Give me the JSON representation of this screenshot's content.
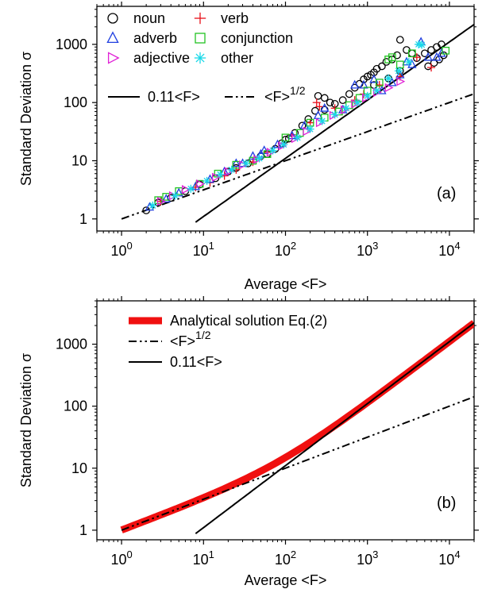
{
  "chart_data": [
    {
      "panel": "(a)",
      "type": "scatter",
      "xlabel": "Average <F>",
      "ylabel": "Standard Deviation σ",
      "xscale": "log",
      "yscale": "log",
      "xlim": [
        0.5,
        20000
      ],
      "ylim": [
        0.62,
        4500
      ],
      "xticks": [
        {
          "v": 1,
          "base": "10",
          "exp": "0"
        },
        {
          "v": 10,
          "base": "10",
          "exp": "1"
        },
        {
          "v": 100,
          "base": "10",
          "exp": "2"
        },
        {
          "v": 1000,
          "base": "10",
          "exp": "3"
        },
        {
          "v": 10000,
          "base": "10",
          "exp": "4"
        }
      ],
      "yticks": [
        {
          "v": 1,
          "label": "1"
        },
        {
          "v": 10,
          "label": "10"
        },
        {
          "v": 100,
          "label": "100"
        },
        {
          "v": 1000,
          "label": "1000"
        }
      ],
      "legend_position": "top-left",
      "legend": [
        {
          "name": "noun",
          "marker": "circle",
          "color": "#000000"
        },
        {
          "name": "verb",
          "marker": "plus",
          "color": "#e8101a"
        },
        {
          "name": "adverb",
          "marker": "triangle-up",
          "color": "#1f3fe0"
        },
        {
          "name": "conjunction",
          "marker": "square",
          "color": "#22c322"
        },
        {
          "name": "adjective",
          "marker": "triangle-right",
          "color": "#e020d6"
        },
        {
          "name": "other",
          "marker": "asterisk",
          "color": "#18d8e8"
        }
      ],
      "line_legend": [
        {
          "text": "0.11<F>",
          "style": "solid",
          "sup": ""
        },
        {
          "text": "<F>",
          "style": "dashdotdot",
          "sup": "1/2"
        }
      ],
      "annotation": "(a)",
      "lines": [
        {
          "style": "solid",
          "formula": "0.11x",
          "x": [
            8,
            20000
          ]
        },
        {
          "style": "dashdotdot",
          "formula": "x^0.5",
          "x": [
            1,
            20000
          ]
        }
      ],
      "series": [
        {
          "name": "noun",
          "marker": "circle",
          "color": "#000000",
          "points": [
            [
              2,
              1.4
            ],
            [
              2.8,
              1.9
            ],
            [
              4,
              2.3
            ],
            [
              6,
              3
            ],
            [
              9,
              3.9
            ],
            [
              14,
              5
            ],
            [
              20,
              6.5
            ],
            [
              25,
              7.5
            ],
            [
              35,
              9
            ],
            [
              50,
              12
            ],
            [
              60,
              13
            ],
            [
              75,
              16
            ],
            [
              90,
              20
            ],
            [
              100,
              23
            ],
            [
              110,
              24
            ],
            [
              130,
              30
            ],
            [
              160,
              40
            ],
            [
              190,
              52
            ],
            [
              230,
              72
            ],
            [
              250,
              130
            ],
            [
              300,
              120
            ],
            [
              300,
              75
            ],
            [
              350,
              100
            ],
            [
              400,
              95
            ],
            [
              500,
              110
            ],
            [
              600,
              140
            ],
            [
              700,
              180
            ],
            [
              800,
              210
            ],
            [
              900,
              250
            ],
            [
              1000,
              280
            ],
            [
              1100,
              300
            ],
            [
              1200,
              330
            ],
            [
              1300,
              380
            ],
            [
              1500,
              420
            ],
            [
              1700,
              500
            ],
            [
              2000,
              550
            ],
            [
              2300,
              650
            ],
            [
              2500,
              1200
            ],
            [
              3000,
              800
            ],
            [
              3500,
              700
            ],
            [
              4000,
              580
            ],
            [
              5000,
              700
            ],
            [
              6000,
              800
            ],
            [
              7000,
              900
            ],
            [
              8000,
              1000
            ],
            [
              8500,
              650
            ],
            [
              7500,
              550
            ],
            [
              6500,
              480
            ],
            [
              5500,
              420
            ],
            [
              2500,
              350
            ],
            [
              1800,
              260
            ],
            [
              1200,
              200
            ]
          ]
        },
        {
          "name": "verb",
          "marker": "plus",
          "color": "#e8101a",
          "points": [
            [
              3,
              2
            ],
            [
              8,
              3.5
            ],
            [
              12,
              4.2
            ],
            [
              18,
              5.5
            ],
            [
              25,
              7
            ],
            [
              40,
              9.5
            ],
            [
              60,
              14
            ],
            [
              120,
              28
            ],
            [
              200,
              45
            ],
            [
              240,
              100
            ],
            [
              260,
              85
            ],
            [
              400,
              80
            ],
            [
              700,
              110
            ],
            [
              900,
              140
            ],
            [
              1400,
              200
            ],
            [
              2500,
              280
            ],
            [
              4000,
              600
            ],
            [
              6000,
              400
            ]
          ]
        },
        {
          "name": "adverb",
          "marker": "triangle-up",
          "color": "#1f3fe0",
          "points": [
            [
              2.2,
              1.6
            ],
            [
              3.5,
              2.2
            ],
            [
              5,
              2.8
            ],
            [
              8,
              3.6
            ],
            [
              12,
              4.8
            ],
            [
              18,
              6.5
            ],
            [
              25,
              9
            ],
            [
              30,
              9
            ],
            [
              40,
              12
            ],
            [
              50,
              13
            ],
            [
              55,
              15
            ],
            [
              80,
              19
            ],
            [
              120,
              27
            ],
            [
              170,
              40
            ],
            [
              250,
              60
            ],
            [
              300,
              80
            ],
            [
              500,
              75
            ],
            [
              700,
              200
            ],
            [
              900,
              200
            ],
            [
              1200,
              250
            ],
            [
              1500,
              160
            ],
            [
              2000,
              220
            ],
            [
              2500,
              300
            ],
            [
              3000,
              500
            ],
            [
              3500,
              450
            ],
            [
              4500,
              1100
            ],
            [
              5500,
              600
            ],
            [
              7000,
              600
            ],
            [
              8000,
              700
            ]
          ]
        },
        {
          "name": "conjunction",
          "marker": "square",
          "color": "#22c322",
          "points": [
            [
              2.8,
              2.1
            ],
            [
              3.5,
              2.4
            ],
            [
              5,
              3
            ],
            [
              9,
              4
            ],
            [
              15,
              6
            ],
            [
              25,
              8.5
            ],
            [
              40,
              10
            ],
            [
              60,
              13
            ],
            [
              100,
              25
            ],
            [
              150,
              30
            ],
            [
              200,
              45
            ],
            [
              300,
              55
            ],
            [
              450,
              70
            ],
            [
              600,
              90
            ],
            [
              800,
              120
            ],
            [
              1000,
              160
            ],
            [
              1400,
              220
            ],
            [
              1800,
              550
            ],
            [
              2000,
              600
            ],
            [
              2500,
              450
            ],
            [
              3500,
              700
            ],
            [
              9000,
              780
            ]
          ]
        },
        {
          "name": "adjective",
          "marker": "triangle-right",
          "color": "#e020d6",
          "points": [
            [
              3,
              2
            ],
            [
              4.2,
              2.5
            ],
            [
              6,
              3.2
            ],
            [
              9,
              4
            ],
            [
              14,
              5.2
            ],
            [
              20,
              6.5
            ],
            [
              30,
              8.5
            ],
            [
              45,
              10.5
            ],
            [
              65,
              14
            ],
            [
              90,
              18
            ],
            [
              130,
              24
            ],
            [
              180,
              32
            ],
            [
              260,
              45
            ],
            [
              380,
              60
            ],
            [
              520,
              75
            ],
            [
              700,
              95
            ],
            [
              950,
              120
            ],
            [
              1300,
              150
            ],
            [
              1800,
              180
            ],
            [
              2500,
              230
            ]
          ]
        },
        {
          "name": "other",
          "marker": "asterisk",
          "color": "#18d8e8",
          "points": [
            [
              2.4,
              1.7
            ],
            [
              4.5,
              2.5
            ],
            [
              7,
              3.3
            ],
            [
              11,
              4.5
            ],
            [
              16,
              5.8
            ],
            [
              22,
              7
            ],
            [
              33,
              9
            ],
            [
              48,
              11
            ],
            [
              70,
              15
            ],
            [
              95,
              19
            ],
            [
              140,
              25
            ],
            [
              200,
              35
            ],
            [
              280,
              48
            ],
            [
              400,
              62
            ],
            [
              550,
              80
            ],
            [
              750,
              100
            ],
            [
              1000,
              130
            ],
            [
              1300,
              160
            ],
            [
              1800,
              260
            ],
            [
              2400,
              350
            ],
            [
              3200,
              500
            ],
            [
              4200,
              1000
            ],
            [
              4600,
              980
            ]
          ]
        }
      ]
    },
    {
      "panel": "(b)",
      "type": "line",
      "xlabel": "Average <F>",
      "ylabel": "Standard Deviation σ",
      "xscale": "log",
      "yscale": "log",
      "xlim": [
        0.5,
        20000
      ],
      "ylim": [
        0.7,
        5000
      ],
      "xticks": [
        {
          "v": 1,
          "base": "10",
          "exp": "0"
        },
        {
          "v": 10,
          "base": "10",
          "exp": "1"
        },
        {
          "v": 100,
          "base": "10",
          "exp": "2"
        },
        {
          "v": 1000,
          "base": "10",
          "exp": "3"
        },
        {
          "v": 10000,
          "base": "10",
          "exp": "4"
        }
      ],
      "yticks": [
        {
          "v": 1,
          "label": "1"
        },
        {
          "v": 10,
          "label": "10"
        },
        {
          "v": 100,
          "label": "100"
        },
        {
          "v": 1000,
          "label": "1000"
        }
      ],
      "legend_position": "top-left",
      "legend": [
        {
          "text": "Analytical solution Eq.(2)",
          "style": "thick",
          "color": "#f01010",
          "sup": ""
        },
        {
          "text": "<F>",
          "style": "dashdotdot",
          "color": "#000000",
          "sup": "1/2"
        },
        {
          "text": "0.11<F>",
          "style": "solid",
          "color": "#000000",
          "sup": ""
        }
      ],
      "annotation": "(b)",
      "lines": [
        {
          "name": "Analytical solution Eq.(2)",
          "style": "thick",
          "color": "#f01010",
          "formula": "sqrt(x + (0.11x)^2)",
          "x": [
            1,
            20000
          ]
        },
        {
          "name": "<F>^1/2",
          "style": "dashdotdot",
          "color": "#000000",
          "formula": "x^0.5",
          "x": [
            1,
            20000
          ]
        },
        {
          "name": "0.11<F>",
          "style": "solid",
          "color": "#000000",
          "formula": "0.11x",
          "x": [
            8,
            20000
          ]
        }
      ]
    }
  ]
}
